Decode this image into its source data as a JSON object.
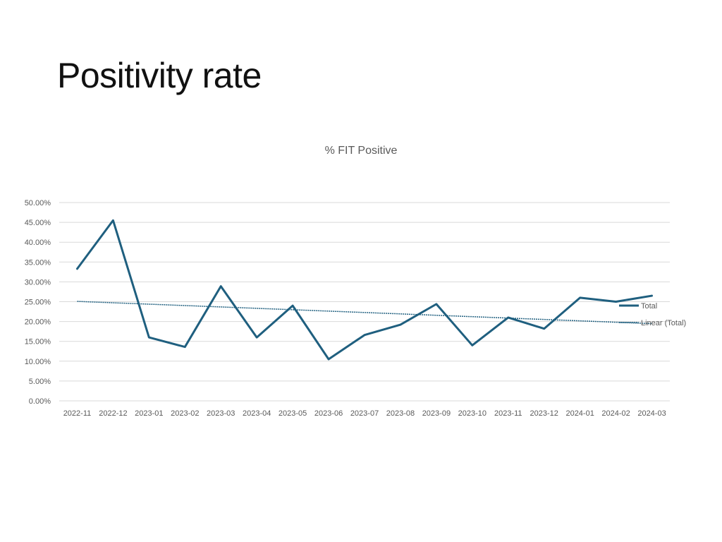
{
  "slide": {
    "title": "Positivity rate"
  },
  "chart_data": {
    "type": "line",
    "title": "% FIT Positive",
    "xlabel": "",
    "ylabel": "",
    "categories": [
      "2022-11",
      "2022-12",
      "2023-01",
      "2023-02",
      "2023-03",
      "2023-04",
      "2023-05",
      "2023-06",
      "2023-07",
      "2023-08",
      "2023-09",
      "2023-10",
      "2023-11",
      "2023-12",
      "2024-01",
      "2024-02",
      "2024-03"
    ],
    "series": [
      {
        "name": "Total",
        "values": [
          33.3,
          45.5,
          16.0,
          13.6,
          28.9,
          16.0,
          24.0,
          10.5,
          16.6,
          19.2,
          24.4,
          14.0,
          21.0,
          18.2,
          26.0,
          25.0,
          26.5
        ],
        "color": "#1f5f7f"
      }
    ],
    "trendline": {
      "name": "Linear (Total)",
      "type": "linear",
      "of_series": "Total",
      "color": "#1f5f7f"
    },
    "ylim": [
      0,
      50
    ],
    "y_ticks": [
      "0.00%",
      "5.00%",
      "10.00%",
      "15.00%",
      "20.00%",
      "25.00%",
      "30.00%",
      "35.00%",
      "40.00%",
      "45.00%",
      "50.00%"
    ],
    "grid": true,
    "legend_position": "right",
    "gridline_color": "#d9d9d9"
  }
}
